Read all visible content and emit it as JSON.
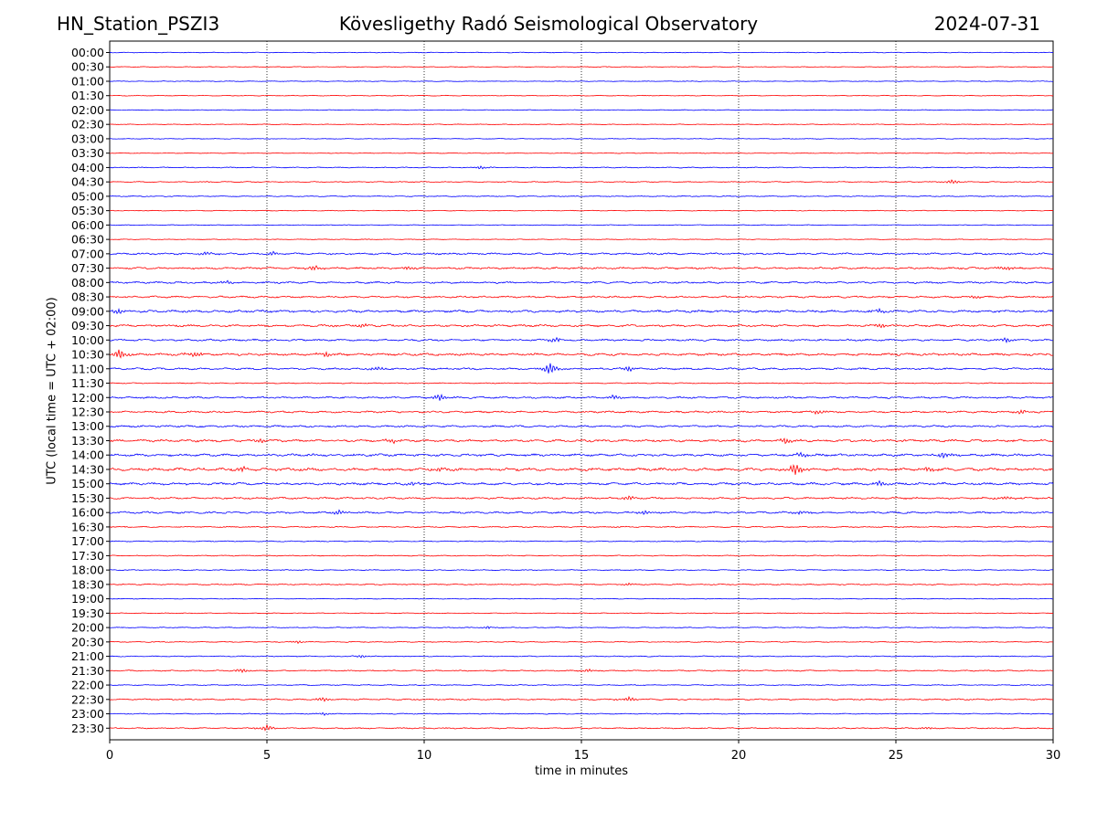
{
  "header": {
    "station": "HN_Station_PSZI3",
    "title": "Kövesligethy Radó Seismological Observatory",
    "date": "2024-07-31"
  },
  "chart_data": {
    "type": "line",
    "subtype": "helicorder",
    "xlabel": "time in minutes",
    "ylabel": "UTC (local time = UTC + 02:00)",
    "xlim": [
      0,
      30
    ],
    "x_ticks": [
      "0",
      "5",
      "10",
      "15",
      "20",
      "25",
      "30"
    ],
    "grid": "vertical dotted lines at 5-minute intervals",
    "colors": {
      "trace_even": "#0000ff",
      "trace_odd": "#ff0000",
      "grid": "#000000"
    },
    "rows": [
      {
        "label": "00:00",
        "color": "blue",
        "amp": 0.3,
        "events": []
      },
      {
        "label": "00:30",
        "color": "red",
        "amp": 0.3,
        "events": []
      },
      {
        "label": "01:00",
        "color": "blue",
        "amp": 0.3,
        "events": []
      },
      {
        "label": "01:30",
        "color": "red",
        "amp": 0.3,
        "events": []
      },
      {
        "label": "02:00",
        "color": "blue",
        "amp": 0.3,
        "events": []
      },
      {
        "label": "02:30",
        "color": "red",
        "amp": 0.3,
        "events": []
      },
      {
        "label": "03:00",
        "color": "blue",
        "amp": 0.3,
        "events": []
      },
      {
        "label": "03:30",
        "color": "red",
        "amp": 0.3,
        "events": []
      },
      {
        "label": "04:00",
        "color": "blue",
        "amp": 0.4,
        "events": [
          {
            "t": 11.8,
            "a": 1.2
          }
        ]
      },
      {
        "label": "04:30",
        "color": "red",
        "amp": 0.4,
        "events": [
          {
            "t": 26.8,
            "a": 1.8
          }
        ]
      },
      {
        "label": "05:00",
        "color": "blue",
        "amp": 0.4,
        "events": []
      },
      {
        "label": "05:30",
        "color": "red",
        "amp": 0.3,
        "events": []
      },
      {
        "label": "06:00",
        "color": "blue",
        "amp": 0.3,
        "events": []
      },
      {
        "label": "06:30",
        "color": "red",
        "amp": 0.3,
        "events": []
      },
      {
        "label": "07:00",
        "color": "blue",
        "amp": 0.8,
        "events": [
          {
            "t": 3.0,
            "a": 1.5
          },
          {
            "t": 5.2,
            "a": 1.5
          }
        ]
      },
      {
        "label": "07:30",
        "color": "red",
        "amp": 0.8,
        "events": [
          {
            "t": 6.5,
            "a": 2.0
          },
          {
            "t": 9.5,
            "a": 1.5
          },
          {
            "t": 28.5,
            "a": 1.5
          }
        ]
      },
      {
        "label": "08:00",
        "color": "blue",
        "amp": 0.8,
        "events": [
          {
            "t": 3.8,
            "a": 1.5
          }
        ]
      },
      {
        "label": "08:30",
        "color": "red",
        "amp": 0.8,
        "events": [
          {
            "t": 27.5,
            "a": 1.5
          }
        ]
      },
      {
        "label": "09:00",
        "color": "blue",
        "amp": 1.0,
        "events": [
          {
            "t": 0.3,
            "a": 2.0
          },
          {
            "t": 24.5,
            "a": 1.5
          }
        ]
      },
      {
        "label": "09:30",
        "color": "red",
        "amp": 0.9,
        "events": [
          {
            "t": 8.0,
            "a": 1.5
          },
          {
            "t": 24.5,
            "a": 1.8
          }
        ]
      },
      {
        "label": "10:00",
        "color": "blue",
        "amp": 0.8,
        "events": [
          {
            "t": 14.2,
            "a": 1.8
          },
          {
            "t": 28.5,
            "a": 1.8
          }
        ]
      },
      {
        "label": "10:30",
        "color": "red",
        "amp": 1.0,
        "events": [
          {
            "t": 0.3,
            "a": 4.0
          },
          {
            "t": 2.7,
            "a": 2.5
          },
          {
            "t": 6.9,
            "a": 2.0
          }
        ]
      },
      {
        "label": "11:00",
        "color": "blue",
        "amp": 0.8,
        "events": [
          {
            "t": 14.0,
            "a": 5.0
          },
          {
            "t": 16.5,
            "a": 2.0
          },
          {
            "t": 8.5,
            "a": 1.5
          }
        ]
      },
      {
        "label": "11:30",
        "color": "red",
        "amp": 0.4,
        "events": []
      },
      {
        "label": "12:00",
        "color": "blue",
        "amp": 0.8,
        "events": [
          {
            "t": 10.5,
            "a": 3.0
          },
          {
            "t": 16.0,
            "a": 1.5
          }
        ]
      },
      {
        "label": "12:30",
        "color": "red",
        "amp": 0.8,
        "events": [
          {
            "t": 22.5,
            "a": 1.5
          },
          {
            "t": 29.0,
            "a": 1.5
          }
        ]
      },
      {
        "label": "13:00",
        "color": "blue",
        "amp": 0.8,
        "events": []
      },
      {
        "label": "13:30",
        "color": "red",
        "amp": 1.0,
        "events": [
          {
            "t": 4.8,
            "a": 2.0
          },
          {
            "t": 9.0,
            "a": 2.0
          },
          {
            "t": 21.5,
            "a": 2.5
          }
        ]
      },
      {
        "label": "14:00",
        "color": "blue",
        "amp": 1.0,
        "events": [
          {
            "t": 22.0,
            "a": 2.0
          },
          {
            "t": 26.5,
            "a": 2.5
          }
        ]
      },
      {
        "label": "14:30",
        "color": "red",
        "amp": 1.2,
        "events": [
          {
            "t": 4.2,
            "a": 2.0
          },
          {
            "t": 10.5,
            "a": 2.0
          },
          {
            "t": 21.8,
            "a": 5.0
          },
          {
            "t": 26.0,
            "a": 2.0
          }
        ]
      },
      {
        "label": "15:00",
        "color": "blue",
        "amp": 1.0,
        "events": [
          {
            "t": 24.5,
            "a": 2.5
          },
          {
            "t": 9.6,
            "a": 1.5
          }
        ]
      },
      {
        "label": "15:30",
        "color": "red",
        "amp": 0.8,
        "events": [
          {
            "t": 16.5,
            "a": 1.8
          },
          {
            "t": 28.5,
            "a": 1.5
          }
        ]
      },
      {
        "label": "16:00",
        "color": "blue",
        "amp": 0.8,
        "events": [
          {
            "t": 7.3,
            "a": 2.0
          },
          {
            "t": 17.0,
            "a": 1.5
          },
          {
            "t": 22.0,
            "a": 1.5
          }
        ]
      },
      {
        "label": "16:30",
        "color": "red",
        "amp": 0.5,
        "events": []
      },
      {
        "label": "17:00",
        "color": "blue",
        "amp": 0.4,
        "events": []
      },
      {
        "label": "17:30",
        "color": "red",
        "amp": 0.4,
        "events": []
      },
      {
        "label": "18:00",
        "color": "blue",
        "amp": 0.4,
        "events": []
      },
      {
        "label": "18:30",
        "color": "red",
        "amp": 0.5,
        "events": [
          {
            "t": 16.5,
            "a": 1.2
          }
        ]
      },
      {
        "label": "19:00",
        "color": "blue",
        "amp": 0.3,
        "events": []
      },
      {
        "label": "19:30",
        "color": "red",
        "amp": 0.3,
        "events": []
      },
      {
        "label": "20:00",
        "color": "blue",
        "amp": 0.4,
        "events": [
          {
            "t": 12.0,
            "a": 1.2
          }
        ]
      },
      {
        "label": "20:30",
        "color": "red",
        "amp": 0.4,
        "events": [
          {
            "t": 6.0,
            "a": 1.2
          }
        ]
      },
      {
        "label": "21:00",
        "color": "blue",
        "amp": 0.4,
        "events": [
          {
            "t": 8.0,
            "a": 1.2
          }
        ]
      },
      {
        "label": "21:30",
        "color": "red",
        "amp": 0.5,
        "events": [
          {
            "t": 4.2,
            "a": 1.5
          },
          {
            "t": 15.2,
            "a": 1.2
          }
        ]
      },
      {
        "label": "22:00",
        "color": "blue",
        "amp": 0.4,
        "events": []
      },
      {
        "label": "22:30",
        "color": "red",
        "amp": 0.6,
        "events": [
          {
            "t": 6.8,
            "a": 1.5
          },
          {
            "t": 16.5,
            "a": 2.0
          }
        ]
      },
      {
        "label": "23:00",
        "color": "blue",
        "amp": 0.4,
        "events": [
          {
            "t": 6.8,
            "a": 1.2
          }
        ]
      },
      {
        "label": "23:30",
        "color": "red",
        "amp": 0.5,
        "events": [
          {
            "t": 5.0,
            "a": 2.5
          },
          {
            "t": 26.0,
            "a": 1.0
          }
        ]
      }
    ]
  }
}
